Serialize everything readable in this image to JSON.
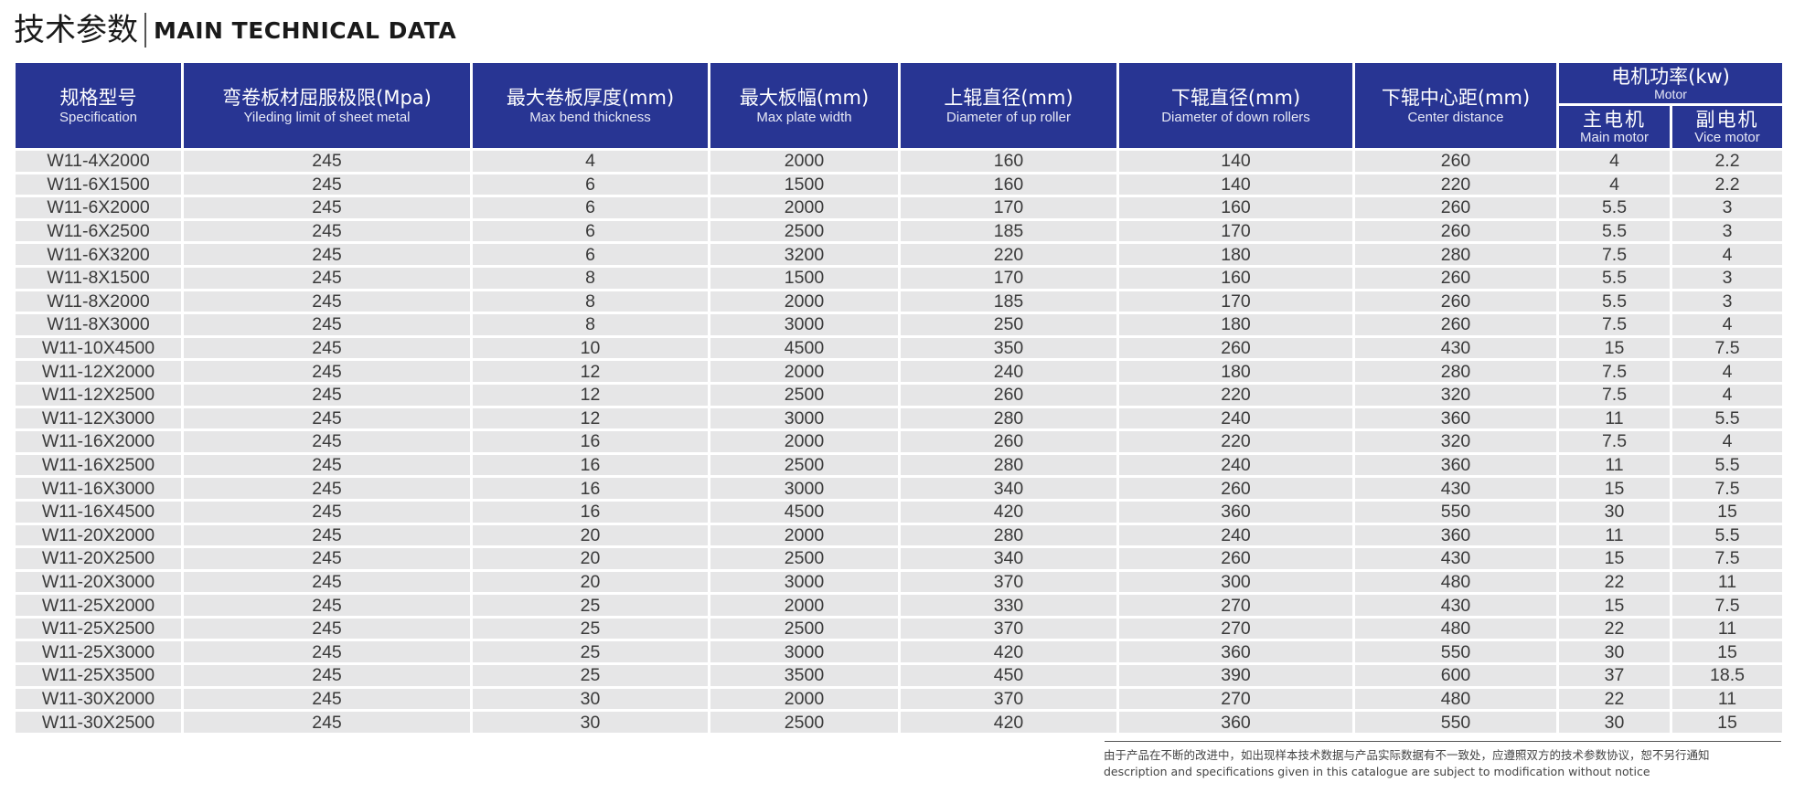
{
  "title": {
    "cn": "技术参数",
    "en": "MAIN TECHNICAL DATA"
  },
  "columns": [
    {
      "cn": "规格型号",
      "en": "Specification"
    },
    {
      "cn": "弯卷板材屈服极限(Mpa)",
      "en": "Yileding limit of sheet metal"
    },
    {
      "cn": "最大卷板厚度(mm)",
      "en": "Max bend thickness"
    },
    {
      "cn": "最大板幅(mm)",
      "en": "Max plate width"
    },
    {
      "cn": "上辊直径(mm)",
      "en": "Diameter of up roller"
    },
    {
      "cn": "下辊直径(mm)",
      "en": "Diameter of down rollers"
    },
    {
      "cn": "下辊中心距(mm)",
      "en": "Center distance"
    }
  ],
  "motor_group": {
    "cn": "电机功率(kw)",
    "en": "Motor"
  },
  "motor_columns": [
    {
      "cn": "主电机",
      "en": "Main motor"
    },
    {
      "cn": "副电机",
      "en": "Vice motor"
    }
  ],
  "rows": [
    [
      "W11-4X2000",
      "245",
      "4",
      "2000",
      "160",
      "140",
      "260",
      "4",
      "2.2"
    ],
    [
      "W11-6X1500",
      "245",
      "6",
      "1500",
      "160",
      "140",
      "220",
      "4",
      "2.2"
    ],
    [
      "W11-6X2000",
      "245",
      "6",
      "2000",
      "170",
      "160",
      "260",
      "5.5",
      "3"
    ],
    [
      "W11-6X2500",
      "245",
      "6",
      "2500",
      "185",
      "170",
      "260",
      "5.5",
      "3"
    ],
    [
      "W11-6X3200",
      "245",
      "6",
      "3200",
      "220",
      "180",
      "280",
      "7.5",
      "4"
    ],
    [
      "W11-8X1500",
      "245",
      "8",
      "1500",
      "170",
      "160",
      "260",
      "5.5",
      "3"
    ],
    [
      "W11-8X2000",
      "245",
      "8",
      "2000",
      "185",
      "170",
      "260",
      "5.5",
      "3"
    ],
    [
      "W11-8X3000",
      "245",
      "8",
      "3000",
      "250",
      "180",
      "260",
      "7.5",
      "4"
    ],
    [
      "W11-10X4500",
      "245",
      "10",
      "4500",
      "350",
      "260",
      "430",
      "15",
      "7.5"
    ],
    [
      "W11-12X2000",
      "245",
      "12",
      "2000",
      "240",
      "180",
      "280",
      "7.5",
      "4"
    ],
    [
      "W11-12X2500",
      "245",
      "12",
      "2500",
      "260",
      "220",
      "320",
      "7.5",
      "4"
    ],
    [
      "W11-12X3000",
      "245",
      "12",
      "3000",
      "280",
      "240",
      "360",
      "11",
      "5.5"
    ],
    [
      "W11-16X2000",
      "245",
      "16",
      "2000",
      "260",
      "220",
      "320",
      "7.5",
      "4"
    ],
    [
      "W11-16X2500",
      "245",
      "16",
      "2500",
      "280",
      "240",
      "360",
      "11",
      "5.5"
    ],
    [
      "W11-16X3000",
      "245",
      "16",
      "3000",
      "340",
      "260",
      "430",
      "15",
      "7.5"
    ],
    [
      "W11-16X4500",
      "245",
      "16",
      "4500",
      "420",
      "360",
      "550",
      "30",
      "15"
    ],
    [
      "W11-20X2000",
      "245",
      "20",
      "2000",
      "280",
      "240",
      "360",
      "11",
      "5.5"
    ],
    [
      "W11-20X2500",
      "245",
      "20",
      "2500",
      "340",
      "260",
      "430",
      "15",
      "7.5"
    ],
    [
      "W11-20X3000",
      "245",
      "20",
      "3000",
      "370",
      "300",
      "480",
      "22",
      "11"
    ],
    [
      "W11-25X2000",
      "245",
      "25",
      "2000",
      "330",
      "270",
      "430",
      "15",
      "7.5"
    ],
    [
      "W11-25X2500",
      "245",
      "25",
      "2500",
      "370",
      "270",
      "480",
      "22",
      "11"
    ],
    [
      "W11-25X3000",
      "245",
      "25",
      "3000",
      "420",
      "360",
      "550",
      "30",
      "15"
    ],
    [
      "W11-25X3500",
      "245",
      "25",
      "3500",
      "450",
      "390",
      "600",
      "37",
      "18.5"
    ],
    [
      "W11-30X2000",
      "245",
      "30",
      "2000",
      "370",
      "270",
      "480",
      "22",
      "11"
    ],
    [
      "W11-30X2500",
      "245",
      "30",
      "2500",
      "420",
      "360",
      "550",
      "30",
      "15"
    ]
  ],
  "footer": {
    "cn": "由于产品在不断的改进中，如出现样本技术数据与产品实际数据有不一致处，应遵照双方的技术参数协议，恕不另行通知",
    "en": "description and specifications given in this catalogue are subject to modification without notice"
  }
}
